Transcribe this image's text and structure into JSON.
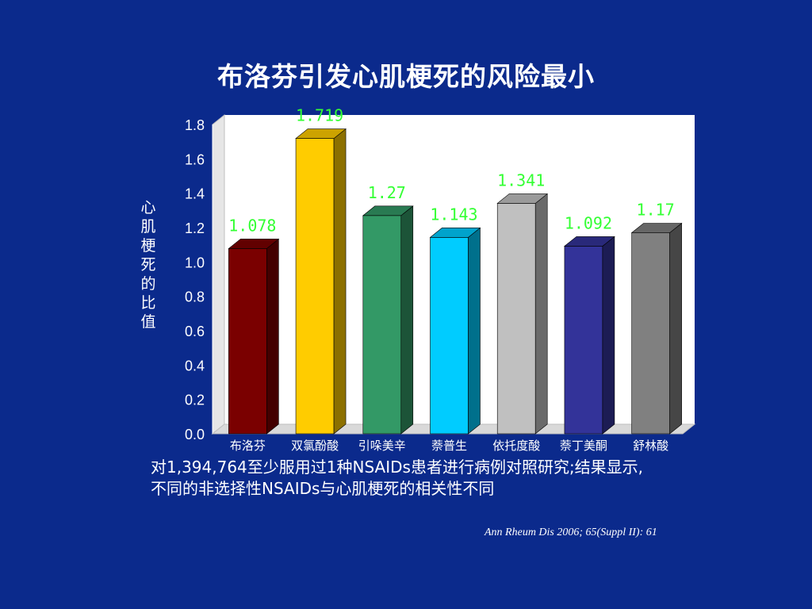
{
  "colors": {
    "background": "#0b2a8c",
    "value_label": "#33ff33",
    "bars": [
      "#7a0000",
      "#ffcc00",
      "#339966",
      "#00ccff",
      "#c0c0c0",
      "#333399",
      "#808080"
    ]
  },
  "footnote": {
    "line1": "对1,394,764至少服用过1种NSAIDs患者进行病例对照研究;结果显示,",
    "line2": "不同的非选择性NSAIDs与心肌梗死的相关性不同"
  },
  "citation": "Ann Rheum Dis 2006; 65(Suppl II): 61",
  "chart_data": {
    "type": "bar",
    "title": "布洛芬引发心肌梗死的风险最小",
    "ylabel": "心肌梗死的比值",
    "xlabel": "",
    "categories": [
      "布洛芬",
      "双氯酚酸",
      "引哚美辛",
      "萘普生",
      "依托度酸",
      "萘丁美酮",
      "舒林酸"
    ],
    "values": [
      1.078,
      1.719,
      1.27,
      1.143,
      1.341,
      1.092,
      1.17
    ],
    "value_labels": [
      "1.078",
      "1.719",
      "1.27",
      "1.143",
      "1.341",
      "1.092",
      "1.17"
    ],
    "ylim": [
      0,
      1.8
    ],
    "yticks": [
      "0.0",
      "0.2",
      "0.4",
      "0.6",
      "0.8",
      "1.0",
      "1.2",
      "1.4",
      "1.6",
      "1.8"
    ],
    "grid": false,
    "legend": false,
    "style": "3d-bar"
  }
}
